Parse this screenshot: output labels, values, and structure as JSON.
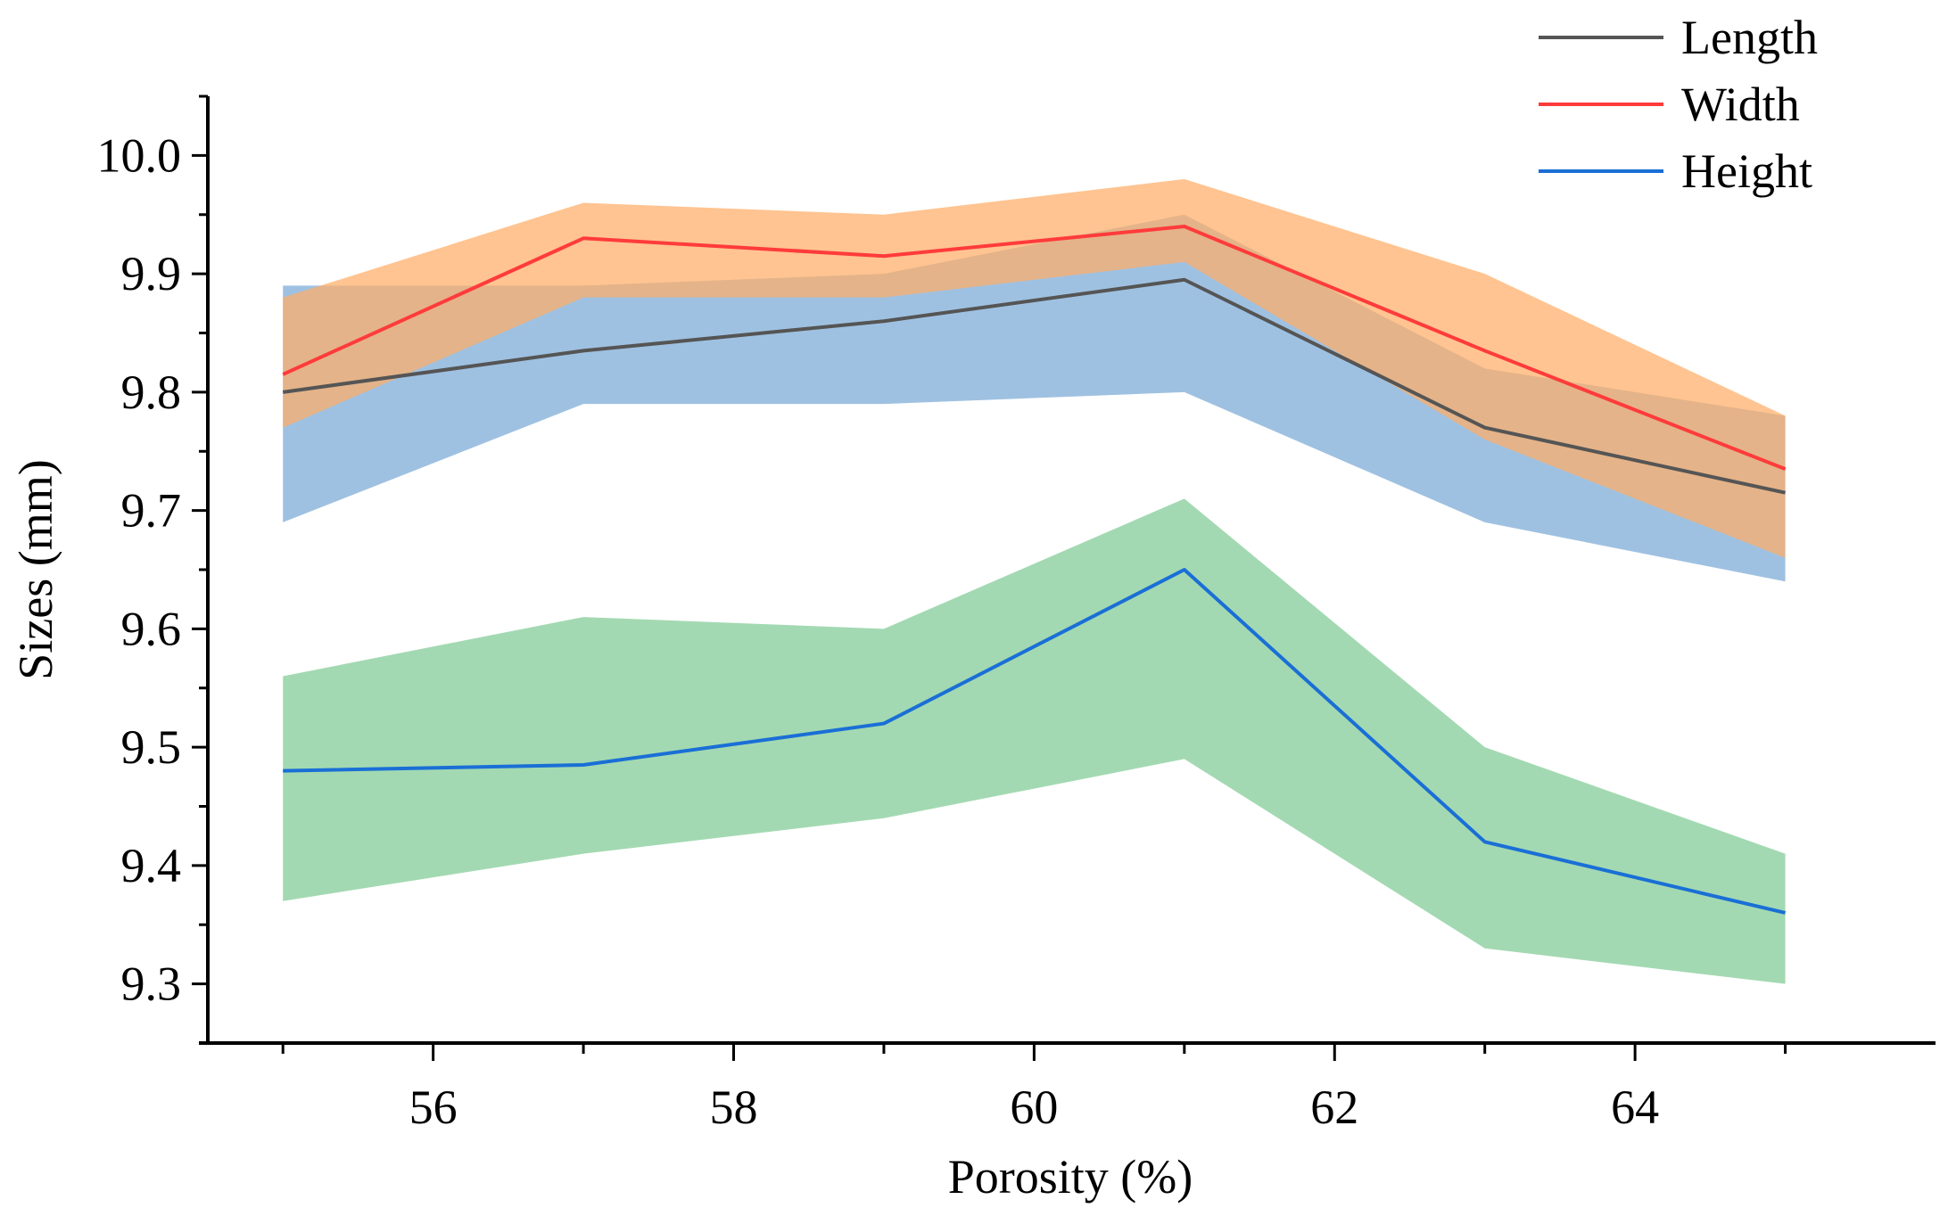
{
  "chart_data": {
    "type": "line",
    "title": "",
    "xlabel": "Porosity (%)",
    "ylabel": "Sizes (mm)",
    "x": [
      55,
      57,
      59,
      61,
      63,
      65
    ],
    "xlim": [
      54.5,
      66.0
    ],
    "ylim": [
      9.25,
      10.05
    ],
    "xticks": [
      56,
      58,
      60,
      62,
      64
    ],
    "xtick_labels": [
      "56",
      "58",
      "60",
      "62",
      "64"
    ],
    "yticks": [
      9.3,
      9.4,
      9.5,
      9.6,
      9.7,
      9.8,
      9.9,
      10.0
    ],
    "ytick_labels": [
      "9.3",
      "9.4",
      "9.5",
      "9.6",
      "9.7",
      "9.8",
      "9.9",
      "10.0"
    ],
    "legend_position": "top-right",
    "series": [
      {
        "name": "Length",
        "color": "#555555",
        "band_color": "#7aa9d6",
        "values": [
          9.8,
          9.835,
          9.86,
          9.895,
          9.77,
          9.715
        ],
        "band_lower": [
          9.69,
          9.79,
          9.79,
          9.8,
          9.69,
          9.64
        ],
        "band_upper": [
          9.89,
          9.89,
          9.9,
          9.95,
          9.82,
          9.78
        ]
      },
      {
        "name": "Width",
        "color": "#ff3b3b",
        "band_color": "#ffad66",
        "values": [
          9.815,
          9.93,
          9.915,
          9.94,
          9.835,
          9.735
        ],
        "band_lower": [
          9.77,
          9.88,
          9.88,
          9.91,
          9.76,
          9.66
        ],
        "band_upper": [
          9.88,
          9.96,
          9.95,
          9.98,
          9.9,
          9.78
        ]
      },
      {
        "name": "Height",
        "color": "#1a6fd6",
        "band_color": "#7fcb94",
        "values": [
          9.48,
          9.485,
          9.52,
          9.65,
          9.42,
          9.36
        ],
        "band_lower": [
          9.37,
          9.41,
          9.44,
          9.49,
          9.33,
          9.3
        ],
        "band_upper": [
          9.56,
          9.61,
          9.6,
          9.71,
          9.5,
          9.41
        ]
      }
    ]
  }
}
